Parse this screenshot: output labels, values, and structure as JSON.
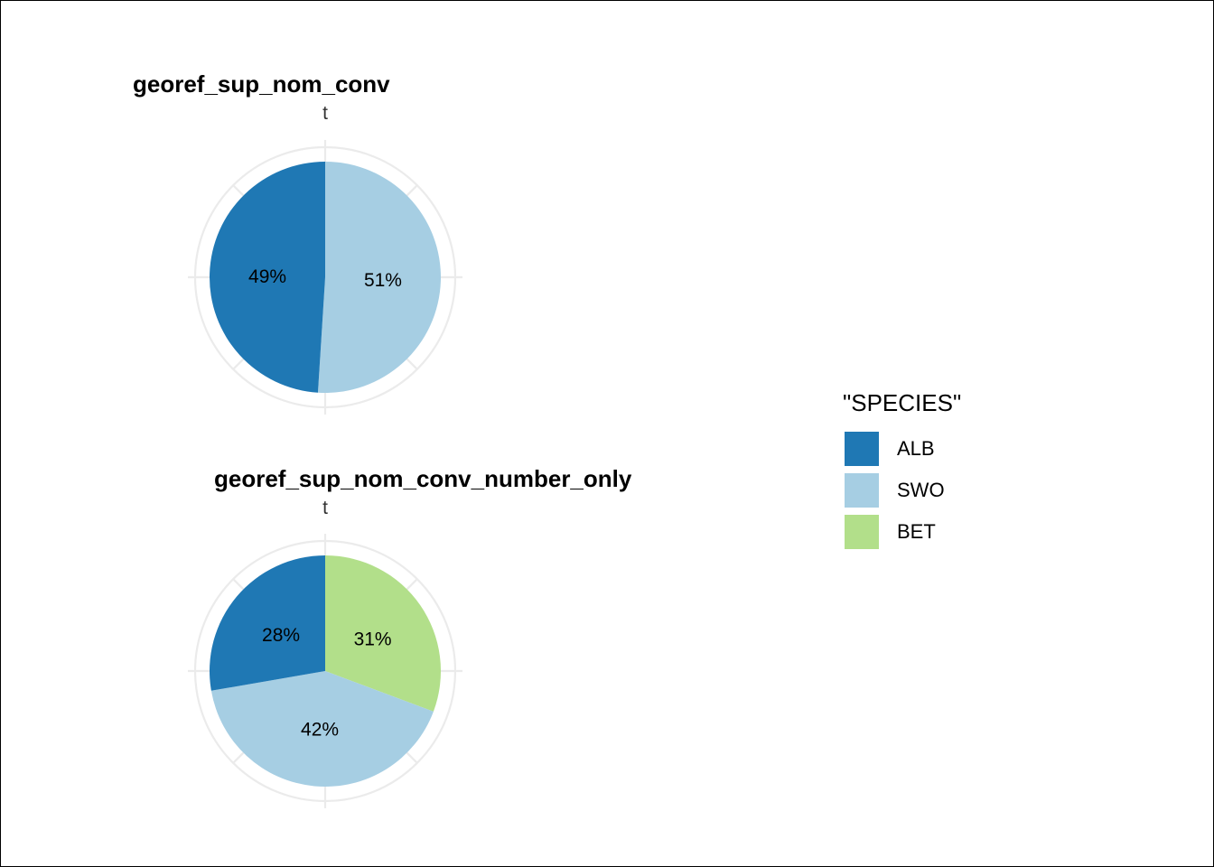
{
  "chart_data": [
    {
      "type": "pie",
      "title": "georef_sup_nom_conv",
      "axis_label": "t",
      "slices": [
        {
          "label": "ALB",
          "value": 49,
          "text": "49%"
        },
        {
          "label": "SWO",
          "value": 51,
          "text": "51%"
        }
      ]
    },
    {
      "type": "pie",
      "title": "georef_sup_nom_conv_number_only",
      "axis_label": "t",
      "slices": [
        {
          "label": "ALB",
          "value": 28,
          "text": "28%"
        },
        {
          "label": "SWO",
          "value": 42,
          "text": "42%"
        },
        {
          "label": "BET",
          "value": 31,
          "text": "31%"
        }
      ]
    }
  ],
  "legend": {
    "title": "\"SPECIES\"",
    "position": "right",
    "items": [
      {
        "label": "ALB",
        "color": "#1f78b4"
      },
      {
        "label": "SWO",
        "color": "#a6cee3"
      },
      {
        "label": "BET",
        "color": "#b2df8a"
      }
    ]
  },
  "style": {
    "grid_color": "#ebebeb",
    "background": "#ffffff"
  }
}
